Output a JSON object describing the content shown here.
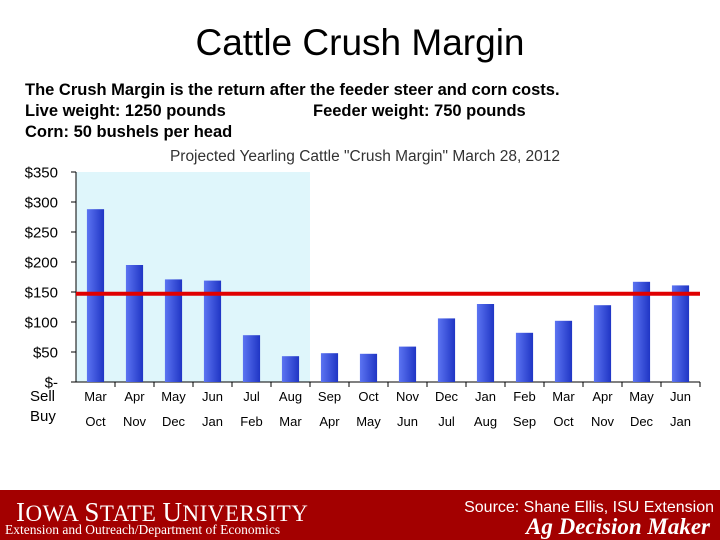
{
  "slide": {
    "title": "Cattle Crush Margin",
    "line1": "The Crush Margin is the return after the feeder steer and corn costs.",
    "line2a": "Live weight:  1250 pounds",
    "line2b": "Feeder weight:  750 pounds",
    "line3": "Corn:  50 bushels per head"
  },
  "chart_data": {
    "type": "bar",
    "title": "Projected Yearling Cattle \"Crush Margin\" March 28, 2012",
    "row_labels": [
      "Sell",
      "Buy"
    ],
    "categories": [
      "Mar",
      "Apr",
      "May",
      "Jun",
      "Jul",
      "Aug",
      "Sep",
      "Oct",
      "Nov",
      "Dec",
      "Jan",
      "Feb",
      "Mar",
      "Apr",
      "May",
      "Jun"
    ],
    "buy_months": [
      "Oct",
      "Nov",
      "Dec",
      "Jan",
      "Feb",
      "Mar",
      "Apr",
      "May",
      "Jun",
      "Jul",
      "Aug",
      "Sep",
      "Oct",
      "Nov",
      "Dec",
      "Jan"
    ],
    "values": [
      288,
      195,
      171,
      169,
      78,
      43,
      48,
      47,
      59,
      106,
      130,
      82,
      102,
      128,
      167,
      161
    ],
    "reference_line": 147,
    "highlight_count": 6,
    "yticks": [
      "$350",
      "$300",
      "$250",
      "$200",
      "$150",
      "$100",
      "$50",
      "$-"
    ],
    "ylim": [
      0,
      350
    ],
    "grid": false,
    "colors": {
      "bar_light": "#5c74f2",
      "bar_dark": "#1f35c4",
      "highlight_bg": "#dff6fb",
      "reference_line": "#e00000"
    }
  },
  "footer": {
    "university_I": "I",
    "university_owa": "OWA ",
    "university_S": "S",
    "university_tate": "TATE ",
    "university_U": "U",
    "university_niversity": "NIVERSITY",
    "department": "Extension and Outreach/Department of Economics",
    "source": "Source: Shane Ellis, ISU Extension",
    "brand": "Ag Decision Maker"
  }
}
